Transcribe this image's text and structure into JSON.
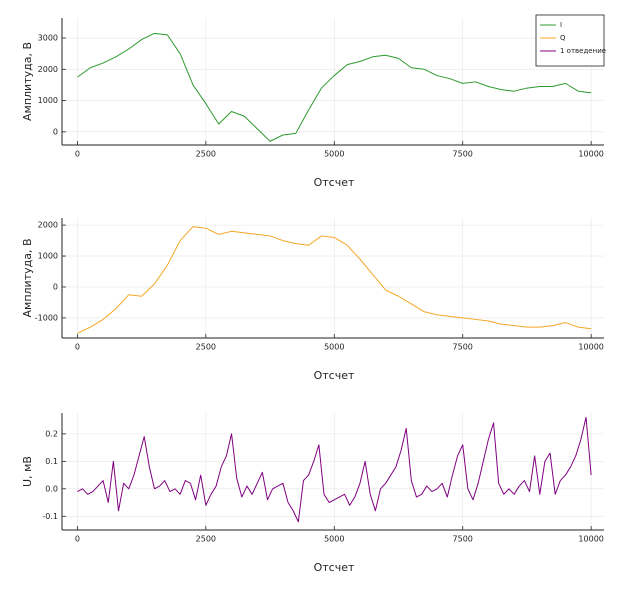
{
  "chart_data": [
    {
      "type": "line",
      "xlabel": "Отсчет",
      "ylabel": "Амплитуда, В",
      "legend": "upper right",
      "grid": true,
      "x": [
        0,
        250,
        500,
        750,
        1000,
        1250,
        1500,
        1750,
        2000,
        2250,
        2500,
        2750,
        3000,
        3250,
        3500,
        3750,
        4000,
        4250,
        4500,
        4750,
        5000,
        5250,
        5500,
        5750,
        6000,
        6250,
        6500,
        6750,
        7000,
        7250,
        7500,
        7750,
        8000,
        8250,
        8500,
        8750,
        9000,
        9250,
        9500,
        9750,
        10000
      ],
      "series": [
        {
          "name": "I",
          "color": "#2e9a2e",
          "values": [
            1750,
            2050,
            2200,
            2400,
            2650,
            2950,
            3150,
            3100,
            2500,
            1500,
            900,
            250,
            650,
            500,
            100,
            -300,
            -100,
            -50,
            700,
            1400,
            1800,
            2150,
            2250,
            2400,
            2450,
            2350,
            2050,
            2000,
            1800,
            1700,
            1550,
            1600,
            1450,
            1350,
            1300,
            1400,
            1450,
            1450,
            1550,
            1300,
            1250
          ]
        }
      ],
      "xlim": [
        -300,
        10250
      ],
      "xticks": [
        0,
        2500,
        5000,
        7500,
        10000
      ],
      "ylim": [
        -420,
        3640
      ],
      "yticks": [
        0,
        1000,
        2000,
        3000
      ]
    },
    {
      "type": "line",
      "xlabel": "Отсчет",
      "ylabel": "Амплитуда, В",
      "grid": true,
      "x": [
        0,
        250,
        500,
        750,
        1000,
        1250,
        1500,
        1750,
        2000,
        2250,
        2500,
        2750,
        3000,
        3250,
        3500,
        3750,
        4000,
        4250,
        4500,
        4750,
        5000,
        5250,
        5500,
        5750,
        6000,
        6250,
        6500,
        6750,
        7000,
        7250,
        7500,
        7750,
        8000,
        8250,
        8500,
        8750,
        9000,
        9250,
        9500,
        9750,
        10000
      ],
      "series": [
        {
          "name": "Q",
          "color": "#f5a623",
          "values": [
            -1500,
            -1300,
            -1050,
            -700,
            -250,
            -300,
            100,
            700,
            1500,
            1950,
            1900,
            1700,
            1800,
            1750,
            1700,
            1650,
            1500,
            1400,
            1350,
            1650,
            1600,
            1350,
            900,
            400,
            -100,
            -300,
            -550,
            -800,
            -900,
            -950,
            -1000,
            -1050,
            -1100,
            -1200,
            -1250,
            -1300,
            -1300,
            -1250,
            -1150,
            -1300,
            -1350
          ]
        }
      ],
      "xlim": [
        -300,
        10250
      ],
      "xticks": [
        0,
        2500,
        5000,
        7500,
        10000
      ],
      "ylim": [
        -1650,
        2230
      ],
      "yticks": [
        -1000,
        0,
        1000,
        2000
      ]
    },
    {
      "type": "line",
      "xlabel": "Отсчет",
      "ylabel": "U, мВ",
      "grid": true,
      "x": [
        0,
        100,
        200,
        300,
        400,
        500,
        600,
        700,
        800,
        900,
        1000,
        1100,
        1200,
        1300,
        1400,
        1500,
        1600,
        1700,
        1800,
        1900,
        2000,
        2100,
        2200,
        2300,
        2400,
        2500,
        2600,
        2700,
        2800,
        2900,
        3000,
        3100,
        3200,
        3300,
        3400,
        3500,
        3600,
        3700,
        3800,
        3900,
        4000,
        4100,
        4200,
        4300,
        4400,
        4500,
        4600,
        4700,
        4800,
        4900,
        5000,
        5100,
        5200,
        5300,
        5400,
        5500,
        5600,
        5700,
        5800,
        5900,
        6000,
        6100,
        6200,
        6300,
        6400,
        6500,
        6600,
        6700,
        6800,
        6900,
        7000,
        7100,
        7200,
        7300,
        7400,
        7500,
        7600,
        7700,
        7800,
        7900,
        8000,
        8100,
        8200,
        8300,
        8400,
        8500,
        8600,
        8700,
        8800,
        8900,
        9000,
        9100,
        9200,
        9300,
        9400,
        9500,
        9600,
        9700,
        9800,
        9900,
        10000
      ],
      "series": [
        {
          "name": "1 отведение",
          "color": "#800080",
          "values": [
            -0.01,
            0.0,
            -0.02,
            -0.01,
            0.01,
            0.03,
            -0.05,
            0.1,
            -0.08,
            0.02,
            0.0,
            0.05,
            0.12,
            0.19,
            0.08,
            0.0,
            0.01,
            0.03,
            -0.01,
            0.0,
            -0.02,
            0.03,
            0.02,
            -0.04,
            0.05,
            -0.06,
            -0.02,
            0.01,
            0.08,
            0.12,
            0.2,
            0.04,
            -0.03,
            0.01,
            -0.02,
            0.02,
            0.06,
            -0.04,
            0.0,
            0.01,
            0.02,
            -0.05,
            -0.08,
            -0.12,
            0.03,
            0.05,
            0.1,
            0.16,
            -0.02,
            -0.05,
            -0.04,
            -0.03,
            -0.02,
            -0.06,
            -0.03,
            0.02,
            0.1,
            -0.02,
            -0.08,
            0.0,
            0.02,
            0.05,
            0.08,
            0.14,
            0.22,
            0.03,
            -0.03,
            -0.02,
            0.01,
            -0.01,
            0.0,
            0.02,
            -0.03,
            0.05,
            0.12,
            0.16,
            0.0,
            -0.04,
            0.02,
            0.1,
            0.18,
            0.24,
            0.02,
            -0.02,
            0.0,
            -0.02,
            0.01,
            0.03,
            -0.01,
            0.12,
            -0.02,
            0.1,
            0.13,
            -0.02,
            0.03,
            0.05,
            0.08,
            0.12,
            0.18,
            0.26,
            0.05
          ]
        }
      ],
      "xlim": [
        -300,
        10250
      ],
      "xticks": [
        0,
        2500,
        5000,
        7500,
        10000
      ],
      "ylim": [
        -0.15,
        0.276
      ],
      "yticks": [
        -0.1,
        {
          "value": 0,
          "label": "0.0"
        },
        0.1,
        0.2
      ]
    }
  ]
}
